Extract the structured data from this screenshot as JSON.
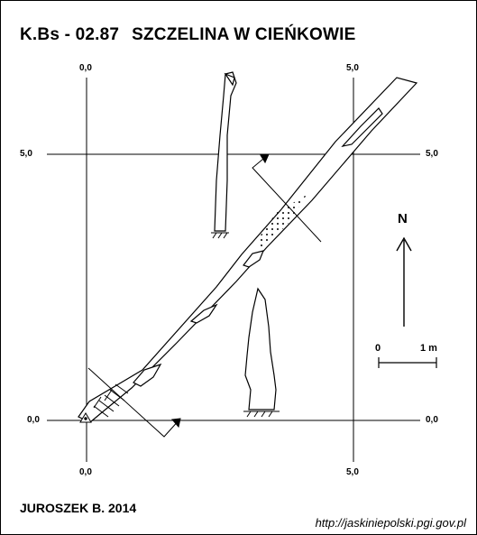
{
  "title": {
    "code": "K.Bs - 02.87",
    "name": "SZCZELINA W CIEŃKOWIE"
  },
  "grid_labels": {
    "top_left": "0,0",
    "top_right": "5,0",
    "left_upper": "5,0",
    "right_upper": "5,0",
    "left_lower": "0,0",
    "right_lower": "0,0",
    "bottom_left": "0,0",
    "bottom_right": "5,0"
  },
  "north_label": "N",
  "scale": {
    "start": "0",
    "end": "1 m"
  },
  "author": "JUROSZEK B. 2014",
  "source_url": "http://jaskiniepolski.pgi.gov.pl",
  "colors": {
    "ink": "#000000",
    "background": "#ffffff"
  }
}
